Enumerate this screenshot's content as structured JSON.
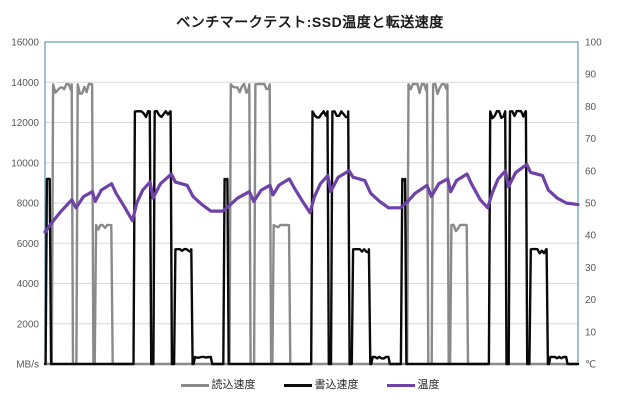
{
  "chart_data": {
    "type": "line",
    "title": "ベンチマークテスト:SSD温度と転送速度",
    "legend_position": "bottom",
    "plot_border_color": "#6596b4",
    "grid": {
      "horizontal": true,
      "vertical": false,
      "color": "#d9d9d9"
    },
    "x_axis": {
      "min": 0,
      "max": 180,
      "tick_labels_visible": false
    },
    "left_axis": {
      "unit_label": "MB/s",
      "min": 0,
      "max": 16000,
      "tick_step": 2000,
      "tick_labels": [
        "16000",
        "14000",
        "12000",
        "10000",
        "8000",
        "6000",
        "4000",
        "2000"
      ],
      "label_color": "#595959"
    },
    "right_axis": {
      "unit_label": "℃",
      "min": 0,
      "max": 100,
      "tick_step": 10,
      "tick_labels": [
        "100",
        "90",
        "80",
        "70",
        "60",
        "50",
        "40",
        "30",
        "20",
        "10"
      ],
      "label_color": "#595959"
    },
    "cycles": 3,
    "cycle_length": 60,
    "series": [
      {
        "name": "読込速度",
        "axis": "left",
        "color": "#8a8a8a",
        "line_width": 2.4,
        "repeats": 3,
        "pattern_segments": [
          {
            "start": 2.3,
            "end": 9.0,
            "value": 13900,
            "noise": 500
          },
          {
            "start": 10.6,
            "end": 15.9,
            "value": 13900,
            "noise": 500
          },
          {
            "start": 16.8,
            "end": 22.4,
            "value": 6900,
            "noise": 300
          }
        ]
      },
      {
        "name": "書込速度",
        "axis": "left",
        "color": "#0a0a0a",
        "line_width": 2.4,
        "repeats": 3,
        "pattern_segments": [
          {
            "start": 0.2,
            "end": 1.6,
            "value": 9200,
            "noise": 100
          },
          {
            "start": 29.9,
            "end": 35.4,
            "value": 12550,
            "noise": 350
          },
          {
            "start": 36.6,
            "end": 42.4,
            "value": 12550,
            "noise": 350
          },
          {
            "start": 43.6,
            "end": 49.4,
            "value": 5700,
            "noise": 200
          },
          {
            "start": 50.2,
            "end": 56.0,
            "value": 350,
            "noise": 80
          }
        ]
      },
      {
        "name": "温度",
        "axis": "right",
        "color": "#6f42a8",
        "line_width": 3.2,
        "points": [
          [
            0,
            41
          ],
          [
            2,
            43.5
          ],
          [
            5,
            47
          ],
          [
            9,
            51
          ],
          [
            10.5,
            48.5
          ],
          [
            13,
            52
          ],
          [
            16,
            53.5
          ],
          [
            17,
            50.5
          ],
          [
            19,
            54
          ],
          [
            22.5,
            56
          ],
          [
            24,
            53
          ],
          [
            27,
            48.5
          ],
          [
            29.5,
            44.5
          ],
          [
            31,
            50
          ],
          [
            33,
            54
          ],
          [
            35.5,
            56.5
          ],
          [
            36.5,
            51.5
          ],
          [
            39,
            56
          ],
          [
            42.7,
            59
          ],
          [
            44,
            56.5
          ],
          [
            48,
            55.5
          ],
          [
            50,
            52
          ],
          [
            53,
            49.5
          ],
          [
            56,
            47.5
          ],
          [
            60,
            47.5
          ],
          [
            62,
            49
          ],
          [
            65,
            51.5
          ],
          [
            69,
            53.5
          ],
          [
            70.5,
            50.5
          ],
          [
            73,
            54
          ],
          [
            76,
            55.5
          ],
          [
            77,
            52.5
          ],
          [
            79,
            55.5
          ],
          [
            82.5,
            57.5
          ],
          [
            84,
            55
          ],
          [
            87,
            50.5
          ],
          [
            89.5,
            47
          ],
          [
            91,
            52
          ],
          [
            93,
            56
          ],
          [
            95.5,
            58.5
          ],
          [
            96.5,
            53.5
          ],
          [
            99,
            58
          ],
          [
            102.7,
            60
          ],
          [
            104,
            58
          ],
          [
            108,
            57
          ],
          [
            110,
            53
          ],
          [
            113,
            50.5
          ],
          [
            116,
            48.5
          ],
          [
            120,
            48.5
          ],
          [
            122,
            50
          ],
          [
            125,
            53
          ],
          [
            129,
            55.5
          ],
          [
            130.5,
            52
          ],
          [
            133,
            56
          ],
          [
            136,
            57.5
          ],
          [
            137,
            53.5
          ],
          [
            139,
            57
          ],
          [
            142.5,
            59
          ],
          [
            144,
            56
          ],
          [
            147,
            51
          ],
          [
            149.5,
            48.5
          ],
          [
            151,
            53
          ],
          [
            153,
            57.5
          ],
          [
            155.5,
            60
          ],
          [
            156.5,
            55
          ],
          [
            159,
            59.5
          ],
          [
            162.7,
            62
          ],
          [
            164,
            59.5
          ],
          [
            168,
            58.5
          ],
          [
            170,
            54
          ],
          [
            173,
            51.5
          ],
          [
            176,
            50
          ],
          [
            180,
            49.5
          ]
        ]
      }
    ]
  }
}
